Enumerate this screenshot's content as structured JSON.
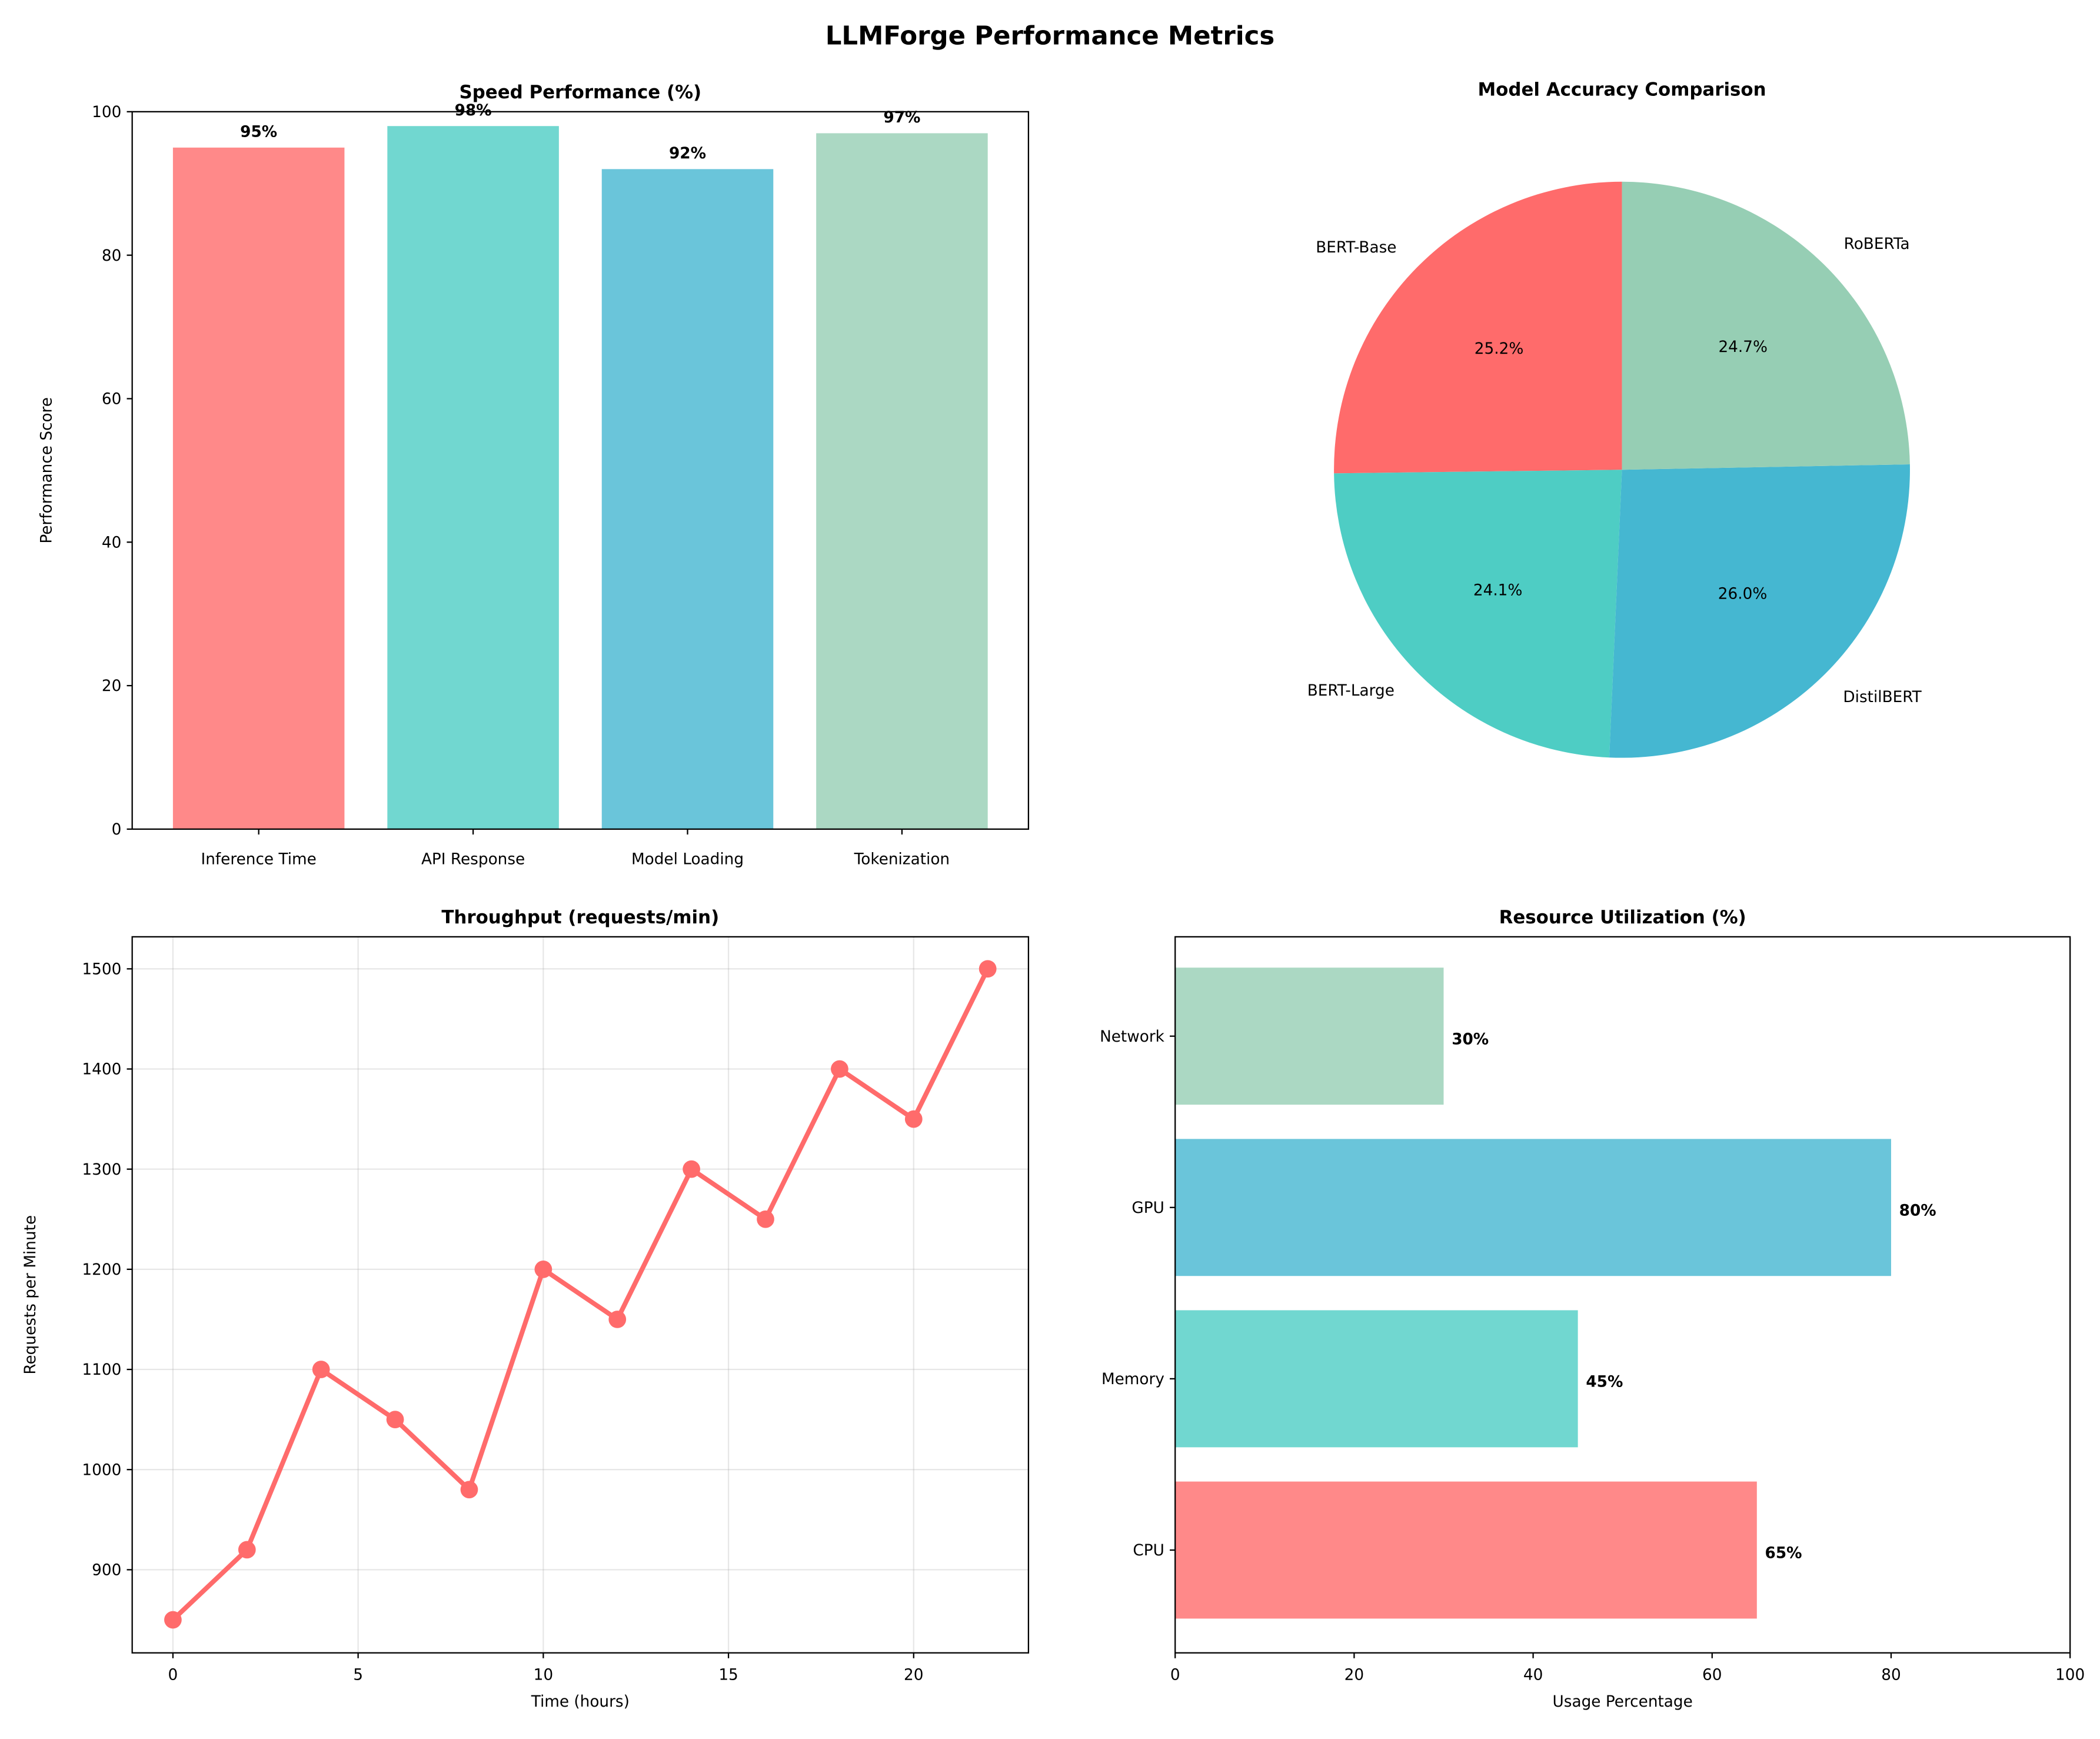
{
  "title": "LLMForge Performance Metrics",
  "colors": [
    "#FF6B6B",
    "#4ECDC4",
    "#45B7D1",
    "#96CEB4"
  ],
  "chart_data": [
    {
      "type": "bar",
      "title": "Speed Performance (%)",
      "xlabel": "",
      "ylabel": "Performance Score",
      "categories": [
        "Inference Time",
        "API Response",
        "Model Loading",
        "Tokenization"
      ],
      "values": [
        95,
        98,
        92,
        97
      ],
      "data_labels": [
        "95%",
        "98%",
        "92%",
        "97%"
      ],
      "ylim": [
        0,
        100
      ],
      "yticks": [
        0,
        20,
        40,
        60,
        80,
        100
      ],
      "grid": false
    },
    {
      "type": "pie",
      "title": "Model Accuracy Comparison",
      "labels": [
        "BERT-Base",
        "BERT-Large",
        "DistilBERT",
        "RoBERTa"
      ],
      "values": [
        25.2,
        24.1,
        26.0,
        24.7
      ],
      "pct_labels": [
        "25.2%",
        "24.1%",
        "26.0%",
        "24.7%"
      ],
      "start_angle": 90,
      "direction": "counterclockwise"
    },
    {
      "type": "line",
      "title": "Throughput (requests/min)",
      "xlabel": "Time (hours)",
      "ylabel": "Requests per Minute",
      "x": [
        0,
        2,
        4,
        6,
        8,
        10,
        12,
        14,
        16,
        18,
        20,
        22
      ],
      "y": [
        850,
        920,
        1100,
        1050,
        980,
        1200,
        1150,
        1300,
        1250,
        1400,
        1350,
        1500
      ],
      "xlim": [
        -1.1,
        23.1
      ],
      "ylim": [
        817,
        1532
      ],
      "xticks": [
        0,
        5,
        10,
        15,
        20
      ],
      "yticks": [
        900,
        1000,
        1100,
        1200,
        1300,
        1400,
        1500
      ],
      "grid": true,
      "color": "#FF6B6B",
      "marker": "circle"
    },
    {
      "type": "bar",
      "orientation": "horizontal",
      "title": "Resource Utilization (%)",
      "xlabel": "Usage Percentage",
      "ylabel": "",
      "categories": [
        "CPU",
        "Memory",
        "GPU",
        "Network"
      ],
      "values": [
        65,
        45,
        80,
        30
      ],
      "data_labels": [
        "65%",
        "45%",
        "80%",
        "30%"
      ],
      "xlim": [
        0,
        100
      ],
      "xticks": [
        0,
        20,
        40,
        60,
        80,
        100
      ],
      "grid": false
    }
  ]
}
